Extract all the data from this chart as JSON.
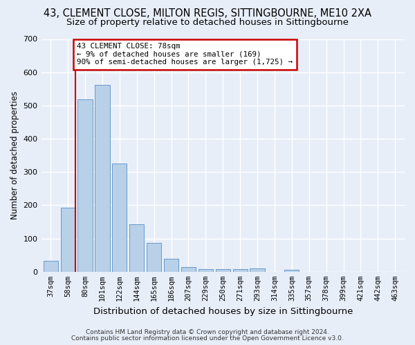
{
  "title_line1": "43, CLEMENT CLOSE, MILTON REGIS, SITTINGBOURNE, ME10 2XA",
  "title_line2": "Size of property relative to detached houses in Sittingbourne",
  "xlabel": "Distribution of detached houses by size in Sittingbourne",
  "ylabel": "Number of detached properties",
  "bar_color": "#b8d0e8",
  "bar_edge_color": "#6699cc",
  "categories": [
    "37sqm",
    "58sqm",
    "80sqm",
    "101sqm",
    "122sqm",
    "144sqm",
    "165sqm",
    "186sqm",
    "207sqm",
    "229sqm",
    "250sqm",
    "271sqm",
    "293sqm",
    "314sqm",
    "335sqm",
    "357sqm",
    "378sqm",
    "399sqm",
    "421sqm",
    "442sqm",
    "463sqm"
  ],
  "values": [
    32,
    192,
    518,
    562,
    325,
    142,
    86,
    40,
    14,
    8,
    7,
    8,
    10,
    0,
    6,
    0,
    0,
    0,
    0,
    0,
    0
  ],
  "ylim": [
    0,
    700
  ],
  "yticks": [
    0,
    100,
    200,
    300,
    400,
    500,
    600,
    700
  ],
  "property_line_color": "#cc0000",
  "annotation_text": "43 CLEMENT CLOSE: 78sqm\n← 9% of detached houses are smaller (169)\n90% of semi-detached houses are larger (1,725) →",
  "annotation_box_color": "#ffffff",
  "annotation_box_edge": "#cc0000",
  "footer_line1": "Contains HM Land Registry data © Crown copyright and database right 2024.",
  "footer_line2": "Contains public sector information licensed under the Open Government Licence v3.0.",
  "background_color": "#e8eef8",
  "grid_color": "#ffffff",
  "title_fontsize": 10.5,
  "subtitle_fontsize": 9.5,
  "tick_fontsize": 7.5,
  "ylabel_fontsize": 8.5,
  "xlabel_fontsize": 9.5,
  "footer_fontsize": 6.5
}
